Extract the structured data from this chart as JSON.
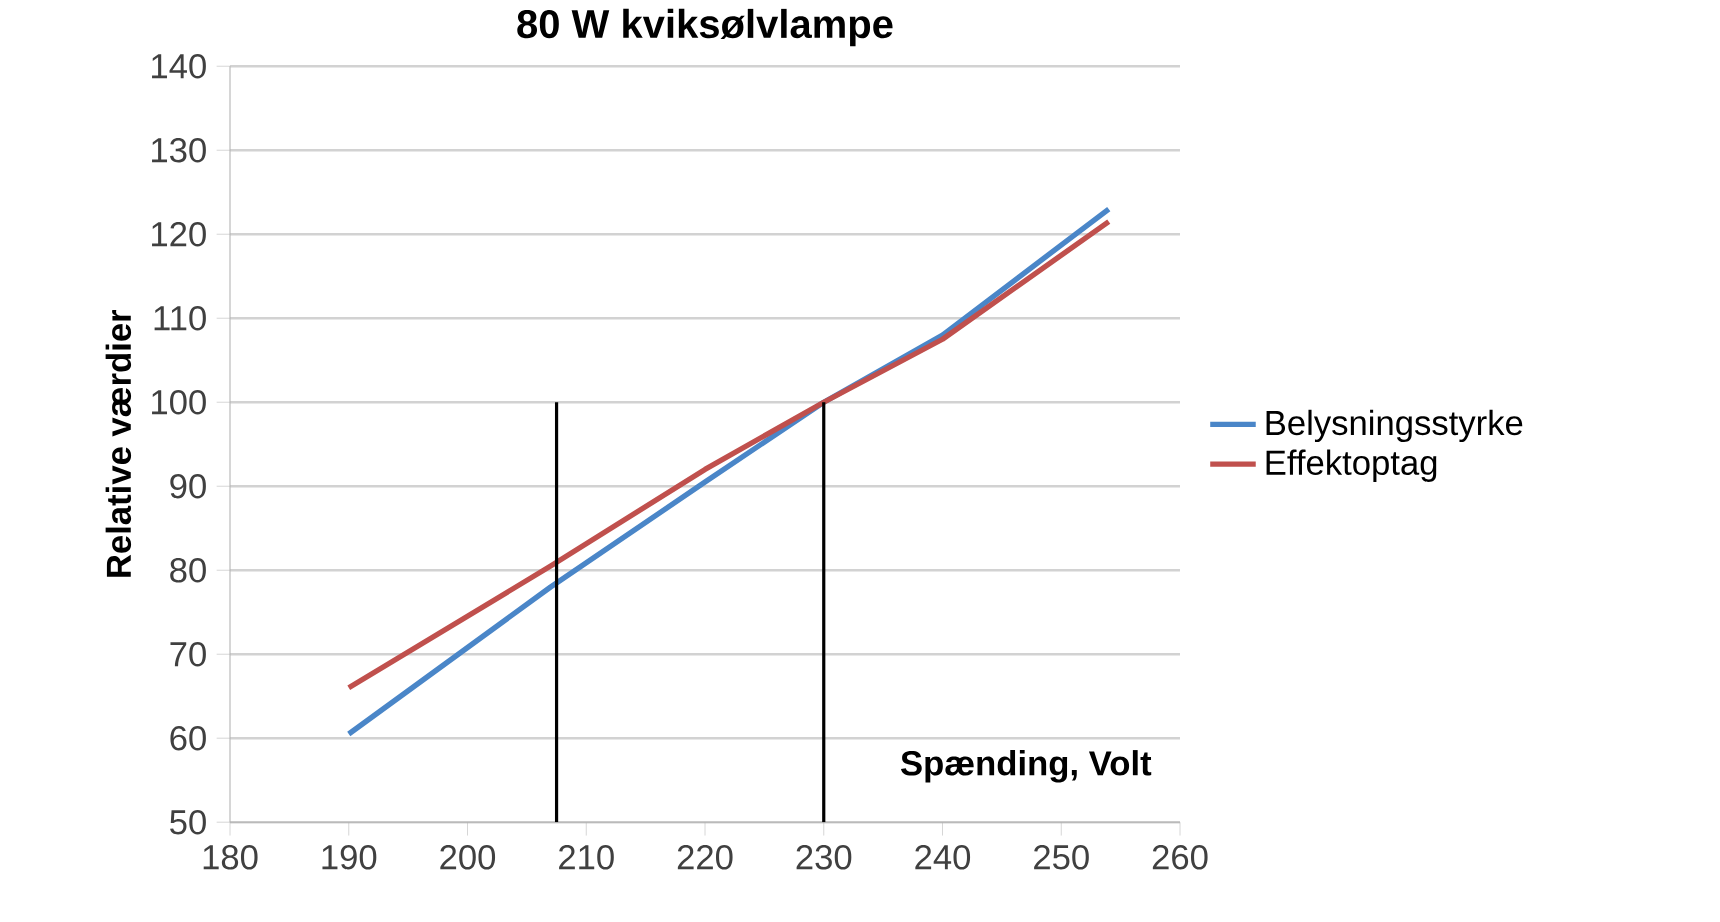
{
  "chart_data": {
    "type": "line",
    "title": "80 W kviksølvlampe",
    "xlabel": "Spænding, Volt",
    "ylabel": "Relative værdier",
    "xlim": [
      180,
      260
    ],
    "xticks": [
      180,
      190,
      200,
      210,
      220,
      230,
      240,
      250,
      260
    ],
    "ylim": [
      50,
      140
    ],
    "yticks": [
      50,
      60,
      70,
      80,
      90,
      100,
      110,
      120,
      130,
      140
    ],
    "grid": "y",
    "legend": "right",
    "marker": "none",
    "line_style": "solid",
    "series": [
      {
        "name": "Belysningsstyrke",
        "color": "#4a86c8",
        "x": [
          190,
          207,
          220,
          230,
          240,
          254
        ],
        "values": [
          60.5,
          78,
          90.5,
          100,
          108,
          123
        ]
      },
      {
        "name": "Effektoptag",
        "color": "#c0504d",
        "x": [
          190,
          207,
          220,
          230,
          240,
          254
        ],
        "values": [
          66,
          80.5,
          92,
          100,
          107.5,
          121.5
        ]
      },
      {
        "color": "#000000",
        "x": [
          207.5,
          207.5
        ],
        "values": [
          50,
          100
        ]
      },
      {
        "color": "#000000",
        "x": [
          230,
          230
        ],
        "values": [
          50,
          100
        ]
      }
    ]
  }
}
